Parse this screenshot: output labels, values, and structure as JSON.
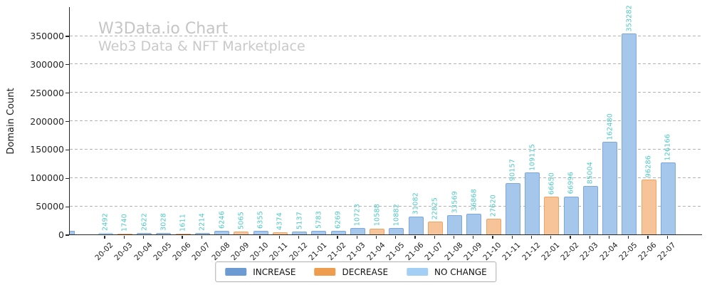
{
  "header": {
    "title": "W3Data.io Chart",
    "subtitle": "Web3 Data & NFT Marketplace",
    "title_color": "#c5c5c5",
    "subtitle_color": "#c9c9c9"
  },
  "chart_data": {
    "type": "bar",
    "title": "W3Data.io Chart",
    "subtitle": "Web3 Data & NFT Marketplace",
    "xlabel": "",
    "ylabel": "Domain Count",
    "ylim": [
      0,
      400000
    ],
    "yticks": [
      0,
      50000,
      100000,
      150000,
      200000,
      250000,
      300000,
      350000
    ],
    "grid": "horizontal-dashed",
    "legend_position": "bottom-center",
    "categories": [
      "20-02",
      "20-03",
      "20-04",
      "20-05",
      "20-06",
      "20-07",
      "20-08",
      "20-09",
      "20-10",
      "20-11",
      "20-12",
      "21-01",
      "21-02",
      "21-03",
      "21-04",
      "21-05",
      "21-06",
      "21-07",
      "21-08",
      "21-09",
      "21-10",
      "21-11",
      "21-12",
      "22-01",
      "22-02",
      "22-03",
      "22-04",
      "22-05",
      "22-06",
      "22-07"
    ],
    "values": [
      2492,
      1740,
      2622,
      3028,
      1611,
      2214,
      6246,
      5065,
      6355,
      4374,
      5137,
      5783,
      6269,
      10723,
      10588,
      10882,
      31082,
      22825,
      33569,
      36868,
      27620,
      90157,
      109115,
      66650,
      66996,
      85004,
      162480,
      353282,
      96286,
      126166
    ],
    "states": [
      "no_change",
      "decrease",
      "increase",
      "increase",
      "decrease",
      "increase",
      "increase",
      "decrease",
      "increase",
      "decrease",
      "increase",
      "increase",
      "increase",
      "increase",
      "decrease",
      "increase",
      "increase",
      "decrease",
      "increase",
      "increase",
      "decrease",
      "increase",
      "increase",
      "decrease",
      "increase",
      "increase",
      "increase",
      "increase",
      "decrease",
      "increase"
    ],
    "series": [
      {
        "key": "increase",
        "label": "INCREASE"
      },
      {
        "key": "decrease",
        "label": "DECREASE"
      },
      {
        "key": "no_change",
        "label": "NO CHANGE"
      }
    ],
    "colors": {
      "increase": {
        "fill": "#a4c7eb",
        "edge": "#7fa8da",
        "legend": "#6b9bd2"
      },
      "decrease": {
        "fill": "#f7c399",
        "edge": "#efa463",
        "legend": "#ee9d4f"
      },
      "no_change": {
        "fill": "#b5d9f5",
        "edge": "#a3cdf0",
        "legend": "#a2cff3"
      }
    },
    "value_label_color": "#4ec9c5",
    "axis_color": "#262626",
    "grid_color": "#b4b4b4"
  }
}
